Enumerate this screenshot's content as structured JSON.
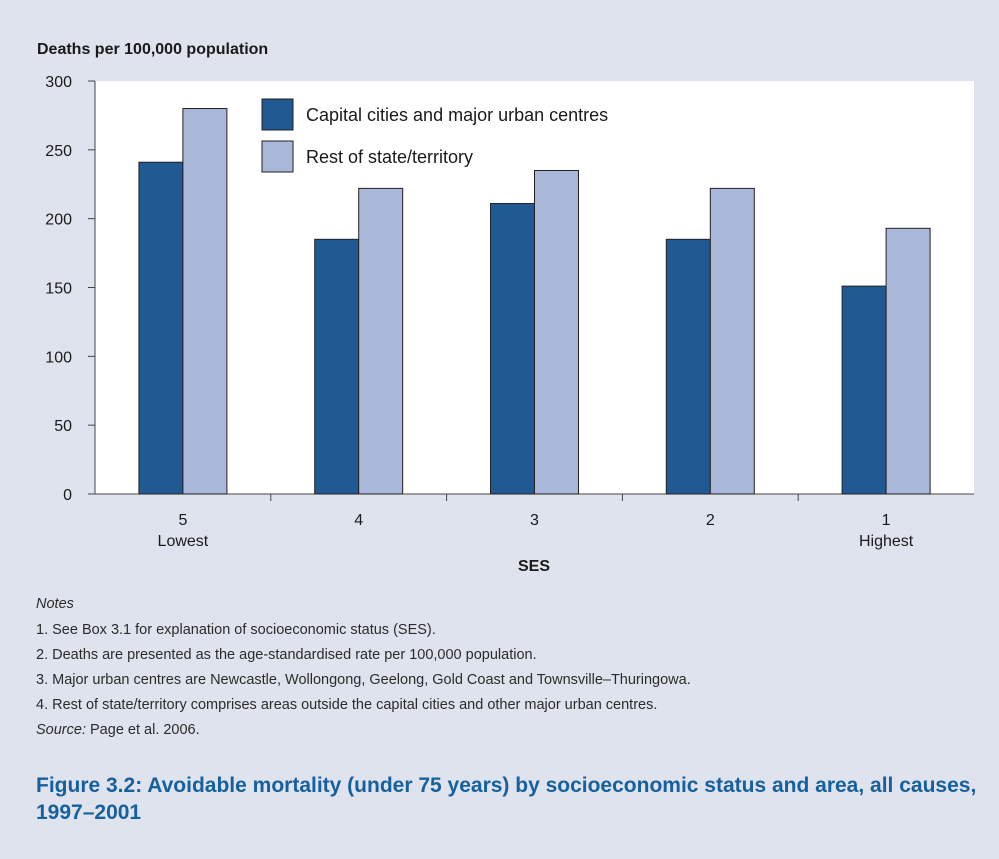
{
  "chart_data": {
    "type": "bar",
    "ylabel": "Deaths per 100,000 population",
    "xlabel": "SES",
    "categories": [
      "5",
      "4",
      "3",
      "2",
      "1"
    ],
    "category_sublabels": [
      "Lowest",
      "",
      "",
      "",
      "Highest"
    ],
    "ylim": [
      0,
      300
    ],
    "yticks": [
      0,
      50,
      100,
      150,
      200,
      250,
      300
    ],
    "grid": false,
    "legend_position": "top-left",
    "series": [
      {
        "name": "Capital cities and major urban centres",
        "color": "#215a92",
        "values": [
          241,
          185,
          211,
          185,
          151
        ]
      },
      {
        "name": "Rest of state/territory",
        "color": "#a9b8d8",
        "values": [
          280,
          222,
          235,
          222,
          193
        ]
      }
    ]
  },
  "notes": {
    "heading": "Notes",
    "items": [
      "1.  See Box 3.1 for explanation of socioeconomic status (SES).",
      "2.  Deaths are presented as the age-standardised rate per 100,000 population.",
      "3.  Major urban centres are Newcastle, Wollongong, Geelong, Gold Coast and Townsville–Thuringowa.",
      "4.  Rest of state/territory comprises areas outside the capital cities and other major urban centres."
    ],
    "source_label": "Source:",
    "source_text": " Page et al. 2006."
  },
  "figure_title": "Figure 3.2: Avoidable mortality (under 75 years) by socioeconomic status and area, all causes, 1997–2001"
}
